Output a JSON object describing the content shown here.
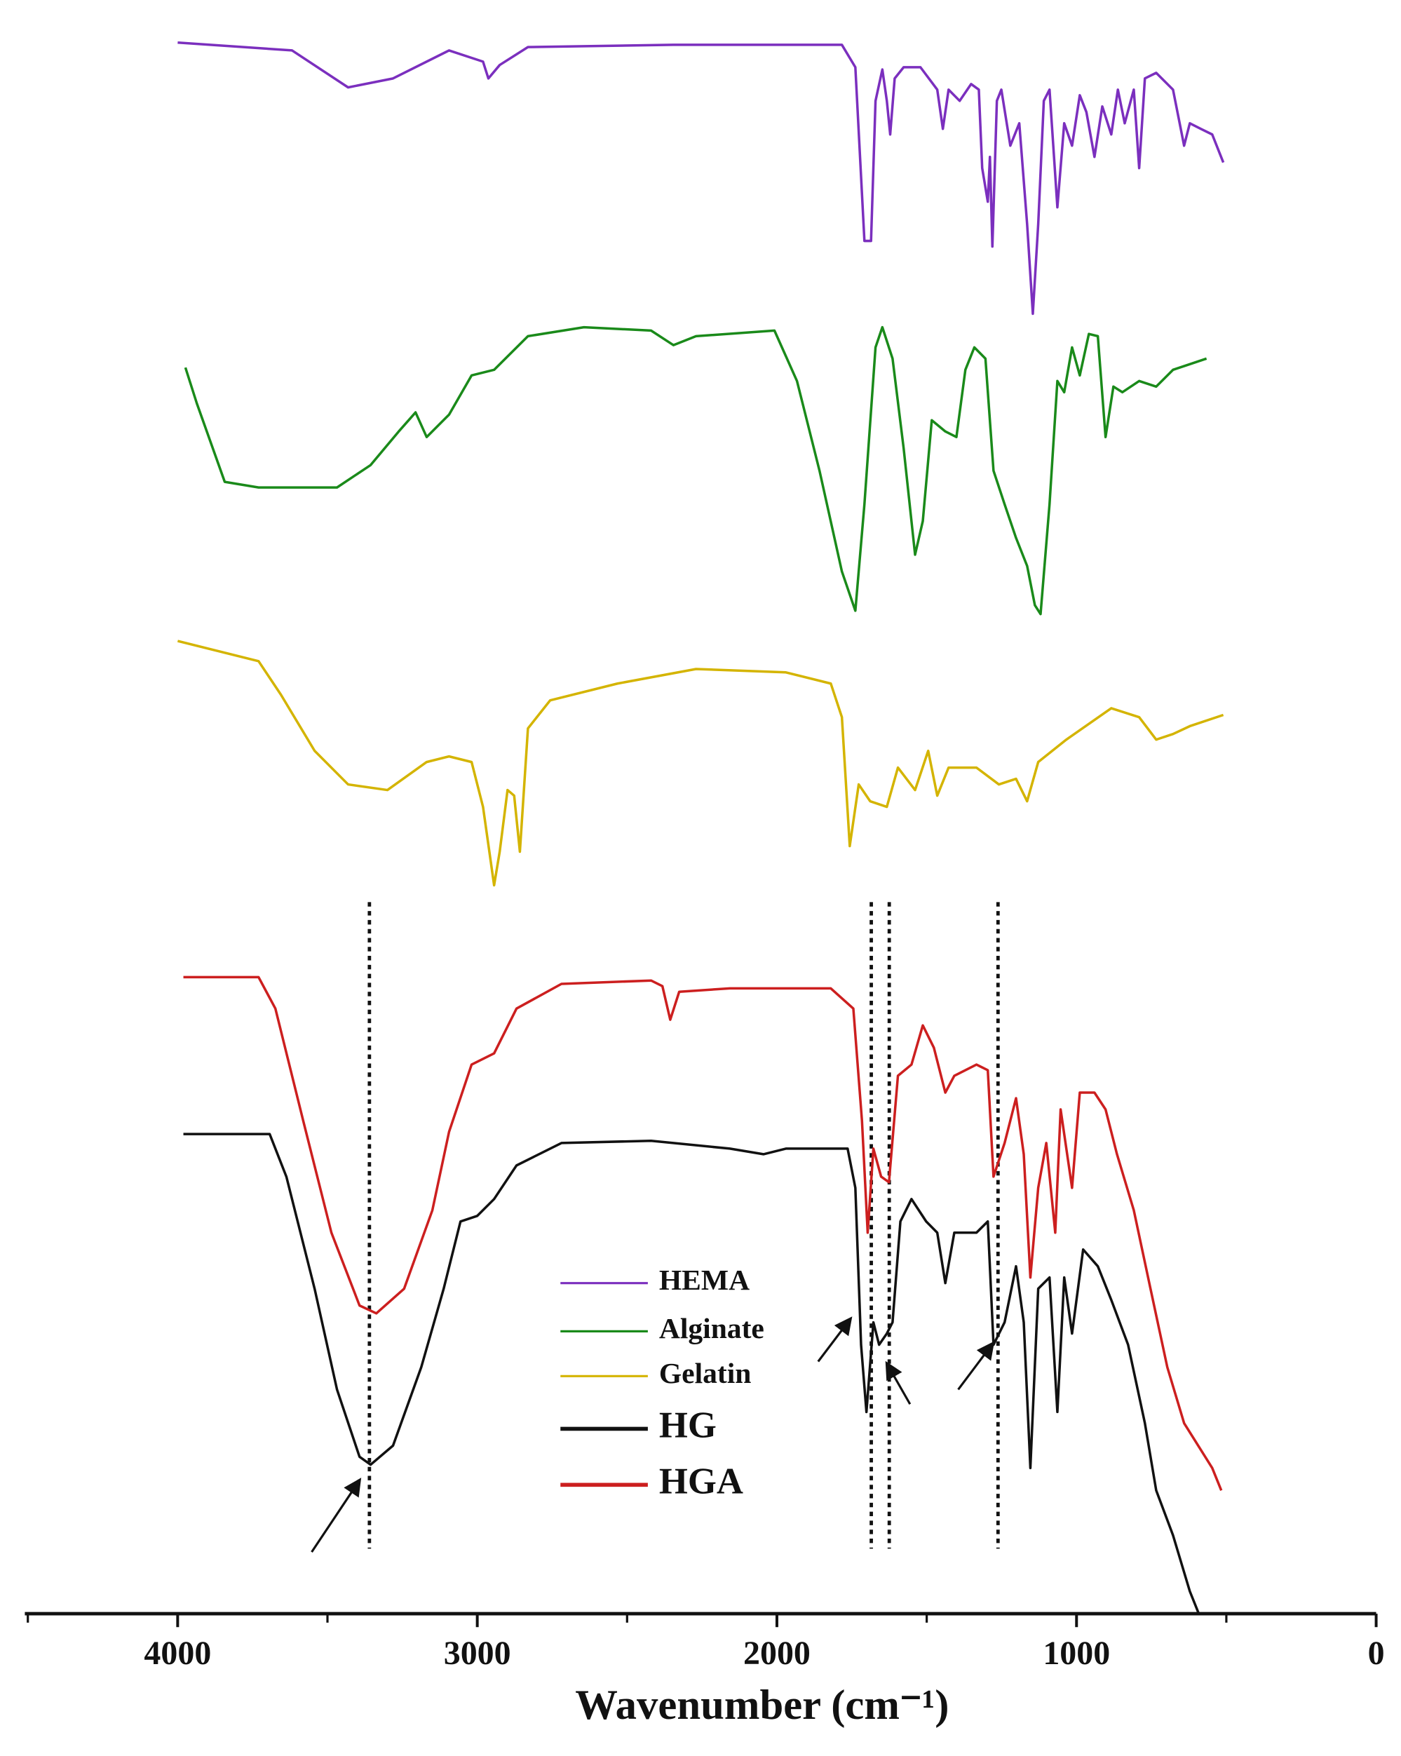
{
  "chart_data": {
    "type": "line",
    "x_label": "Wavenumber (cm⁻¹)",
    "xlim": [
      4510,
      0
    ],
    "xticks": [
      4000,
      3000,
      2000,
      1000,
      0
    ],
    "xminorticks": [
      4500,
      3500,
      2500,
      1500,
      500
    ],
    "ylim": [
      0,
      144
    ],
    "legend": "lower center",
    "vlines": [
      3360,
      1685,
      1625,
      1262
    ],
    "series": [
      {
        "name": "HEMA",
        "color": "#7b2fbe",
        "x": [
          4000,
          3618,
          3431,
          3281,
          3094,
          2981,
          2963,
          2925,
          2831,
          2345,
          1783,
          1738,
          1708,
          1686,
          1671,
          1648,
          1633,
          1622,
          1607,
          1577,
          1521,
          1465,
          1446,
          1427,
          1390,
          1352,
          1326,
          1315,
          1296,
          1289,
          1281,
          1266,
          1251,
          1221,
          1191,
          1165,
          1146,
          1128,
          1109,
          1090,
          1064,
          1041,
          1015,
          989,
          967,
          940,
          914,
          884,
          862,
          839,
          809,
          791,
          772,
          734,
          678,
          641,
          622,
          585,
          547,
          510
        ],
        "values": [
          140.2,
          139.5,
          136.2,
          137,
          139.5,
          138.5,
          137,
          138.2,
          139.8,
          140,
          140,
          138,
          122.5,
          122.5,
          135,
          137.8,
          135,
          132,
          137,
          138,
          138,
          136,
          132.5,
          136,
          135,
          136.5,
          136,
          129,
          126,
          130,
          122,
          135,
          136,
          131,
          133,
          124,
          116,
          124,
          135,
          136,
          125.5,
          133,
          131,
          135.5,
          134,
          130,
          134.5,
          132,
          136,
          133,
          136,
          129,
          137,
          137.5,
          136,
          131,
          133,
          132.5,
          132,
          129.5
        ]
      },
      {
        "name": "Alginate",
        "color": "#1a8a1a",
        "x": [
          3974,
          3936,
          3843,
          3730,
          3468,
          3356,
          3262,
          3206,
          3169,
          3094,
          3019,
          2944,
          2831,
          2644,
          2420,
          2345,
          2270,
          2008,
          1933,
          1858,
          1783,
          1738,
          1708,
          1671,
          1648,
          1614,
          1577,
          1539,
          1513,
          1483,
          1438,
          1401,
          1371,
          1341,
          1304,
          1277,
          1240,
          1202,
          1165,
          1139,
          1120,
          1090,
          1064,
          1041,
          1015,
          989,
          959,
          929,
          903,
          877,
          847,
          791,
          734,
          678,
          622,
          566
        ],
        "values": [
          111.2,
          108,
          101,
          100.5,
          100.5,
          102.5,
          105.5,
          107.2,
          105,
          107,
          110.5,
          111,
          114,
          114.8,
          114.5,
          113.2,
          114,
          114.5,
          110,
          102,
          93,
          89.5,
          99,
          113,
          114.8,
          112,
          104,
          94.5,
          97.5,
          106.5,
          105.5,
          105,
          111,
          113,
          112,
          102,
          99,
          96,
          93.5,
          90,
          89.2,
          99,
          110,
          109,
          113,
          110.5,
          114.2,
          114,
          105,
          109.5,
          109,
          110,
          109.5,
          111,
          111.5,
          112
        ]
      },
      {
        "name": "Gelatin",
        "color": "#d4b400",
        "x": [
          4000,
          3730,
          3655,
          3543,
          3431,
          3300,
          3169,
          3094,
          3019,
          2981,
          2944,
          2925,
          2899,
          2877,
          2858,
          2831,
          2757,
          2532,
          2270,
          1970,
          1820,
          1783,
          1757,
          1727,
          1689,
          1633,
          1596,
          1539,
          1495,
          1465,
          1427,
          1334,
          1259,
          1202,
          1165,
          1128,
          1034,
          884,
          791,
          734,
          678,
          622,
          510
        ],
        "values": [
          86.8,
          85,
          82,
          77,
          74,
          73.5,
          76,
          76.5,
          76,
          72,
          65,
          68,
          73.5,
          73,
          68,
          79,
          81.5,
          83,
          84.3,
          84,
          83,
          80,
          68.5,
          74,
          72.5,
          72,
          75.5,
          73.5,
          77,
          73,
          75.5,
          75.5,
          74,
          74.5,
          72.5,
          76,
          78,
          80.8,
          80,
          78,
          78.5,
          79.2,
          80.2
        ]
      },
      {
        "name": "HG",
        "color": "#111111",
        "x": [
          3981,
          3693,
          3637,
          3543,
          3468,
          3393,
          3356,
          3281,
          3187,
          3112,
          3056,
          3000,
          2944,
          2869,
          2719,
          2420,
          2157,
          2045,
          1970,
          1764,
          1738,
          1719,
          1701,
          1678,
          1659,
          1633,
          1614,
          1588,
          1551,
          1502,
          1465,
          1438,
          1408,
          1334,
          1296,
          1277,
          1240,
          1202,
          1176,
          1154,
          1128,
          1090,
          1064,
          1041,
          1015,
          978,
          929,
          884,
          828,
          772,
          734,
          678,
          622,
          592
        ],
        "values": [
          42.8,
          42.8,
          39,
          29,
          20,
          14,
          13.3,
          15,
          22,
          29,
          35,
          35.5,
          37,
          40,
          42,
          42.2,
          41.5,
          41,
          41.5,
          41.5,
          38,
          24,
          18,
          26,
          24,
          25,
          26,
          35,
          37,
          35,
          34,
          29.5,
          34,
          34,
          35,
          24,
          26,
          31,
          26,
          13,
          29,
          30,
          18,
          30,
          25,
          32.5,
          31,
          28,
          24,
          17,
          11,
          7,
          2,
          0
        ]
      },
      {
        "name": "HGA",
        "color": "#cc1f1f",
        "x": [
          3981,
          3730,
          3674,
          3581,
          3487,
          3393,
          3337,
          3244,
          3150,
          3094,
          3019,
          2944,
          2869,
          2719,
          2420,
          2382,
          2356,
          2326,
          2157,
          1820,
          1745,
          1716,
          1697,
          1678,
          1652,
          1626,
          1596,
          1551,
          1513,
          1476,
          1438,
          1408,
          1334,
          1296,
          1277,
          1240,
          1202,
          1176,
          1154,
          1128,
          1101,
          1071,
          1053,
          1015,
          989,
          940,
          903,
          865,
          809,
          753,
          697,
          641,
          547,
          517
        ],
        "values": [
          56.8,
          56.8,
          54,
          44,
          34,
          27.5,
          26.8,
          29,
          36,
          43,
          49,
          50,
          54,
          56.2,
          56.5,
          56,
          53,
          55.5,
          55.8,
          55.8,
          54,
          44,
          34,
          41.5,
          39,
          38.5,
          48,
          49,
          52.5,
          50.5,
          46.5,
          48,
          49,
          48.5,
          39,
          42,
          46,
          41,
          30,
          38,
          42,
          34,
          45,
          38,
          46.5,
          46.5,
          45,
          41,
          36,
          29,
          22,
          17,
          13,
          11
        ]
      }
    ]
  }
}
